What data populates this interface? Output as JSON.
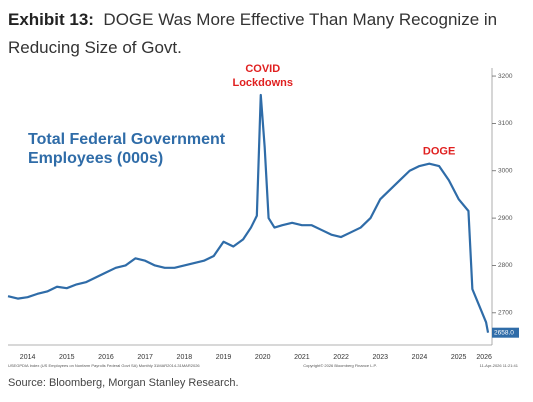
{
  "chart_data": {
    "type": "line",
    "exhibit": "Exhibit 13:",
    "title": "DOGE Was More Effective Than Many Recognize in Reducing Size of Govt.",
    "source": "Source: Bloomberg, Morgan Stanley Research.",
    "series_label": [
      "Total Federal Government",
      "Employees (000s)"
    ],
    "annotations": [
      {
        "text": [
          "COVID",
          "Lockdowns"
        ],
        "x": 2020.45,
        "y": 3160
      },
      {
        "text": [
          "DOGE"
        ],
        "x": 2024.95,
        "y": 3015
      }
    ],
    "footnote_left": "USEGPDIA Index (US Employees on Nonfarm Payrolls Federal Govt SA) Monthly 31MAR2014-31MAR2026",
    "footnote_mid": "Copyright© 2026 Bloomberg Finance L.P.",
    "footnote_right": "11-Apr-2026 11:21:41",
    "x": [
      2014.0,
      2014.25,
      2014.5,
      2014.75,
      2015.0,
      2015.25,
      2015.5,
      2015.75,
      2016.0,
      2016.25,
      2016.5,
      2016.75,
      2017.0,
      2017.25,
      2017.5,
      2017.75,
      2018.0,
      2018.25,
      2018.5,
      2018.75,
      2019.0,
      2019.25,
      2019.5,
      2019.75,
      2020.0,
      2020.2,
      2020.35,
      2020.45,
      2020.55,
      2020.65,
      2020.8,
      2021.0,
      2021.25,
      2021.5,
      2021.75,
      2022.0,
      2022.25,
      2022.5,
      2022.75,
      2023.0,
      2023.25,
      2023.5,
      2023.75,
      2024.0,
      2024.25,
      2024.5,
      2024.75,
      2025.0,
      2025.25,
      2025.5,
      2025.75,
      2025.85,
      2026.0,
      2026.2,
      2026.25
    ],
    "series": [
      {
        "name": "USEGPDIA Index",
        "color": "#2f6ca8",
        "values": [
          2735,
          2730,
          2733,
          2740,
          2745,
          2755,
          2752,
          2760,
          2765,
          2775,
          2785,
          2795,
          2800,
          2815,
          2810,
          2800,
          2795,
          2795,
          2800,
          2805,
          2810,
          2820,
          2850,
          2840,
          2855,
          2880,
          2905,
          3160,
          3050,
          2900,
          2880,
          2885,
          2890,
          2885,
          2885,
          2875,
          2865,
          2860,
          2870,
          2880,
          2900,
          2940,
          2960,
          2980,
          3000,
          3010,
          3015,
          3010,
          2980,
          2940,
          2915,
          2750,
          2720,
          2680,
          2658
        ],
        "value_labels": [
          null,
          null,
          null,
          null,
          null,
          null,
          null,
          null,
          null,
          null,
          null,
          null,
          null,
          null,
          null,
          null,
          null,
          null,
          null,
          null,
          null,
          null,
          null,
          null,
          null,
          null,
          null,
          null,
          null,
          null,
          null,
          null,
          null,
          null,
          null,
          null,
          null,
          null,
          null,
          null,
          null,
          null,
          null,
          null,
          null,
          null,
          null,
          null,
          null,
          null,
          null,
          null,
          null,
          null,
          "2658.0"
        ]
      }
    ],
    "xlim": [
      2014.0,
      2026.3
    ],
    "xticks": [
      {
        "value": 2014.5,
        "label": "2014"
      },
      {
        "value": 2015.5,
        "label": "2015"
      },
      {
        "value": 2016.5,
        "label": "2016"
      },
      {
        "value": 2017.5,
        "label": "2017"
      },
      {
        "value": 2018.5,
        "label": "2018"
      },
      {
        "value": 2019.5,
        "label": "2019"
      },
      {
        "value": 2020.5,
        "label": "2020"
      },
      {
        "value": 2021.5,
        "label": "2021"
      },
      {
        "value": 2022.5,
        "label": "2022"
      },
      {
        "value": 2023.5,
        "label": "2023"
      },
      {
        "value": 2024.5,
        "label": "2024"
      },
      {
        "value": 2025.5,
        "label": "2025"
      },
      {
        "value": 2026.15,
        "label": "2026"
      }
    ],
    "ylim": [
      2632,
      3217
    ],
    "yticks": [
      2700,
      2800,
      2900,
      3000,
      3100,
      3200
    ],
    "yaxis_side": "right",
    "grid": false
  }
}
